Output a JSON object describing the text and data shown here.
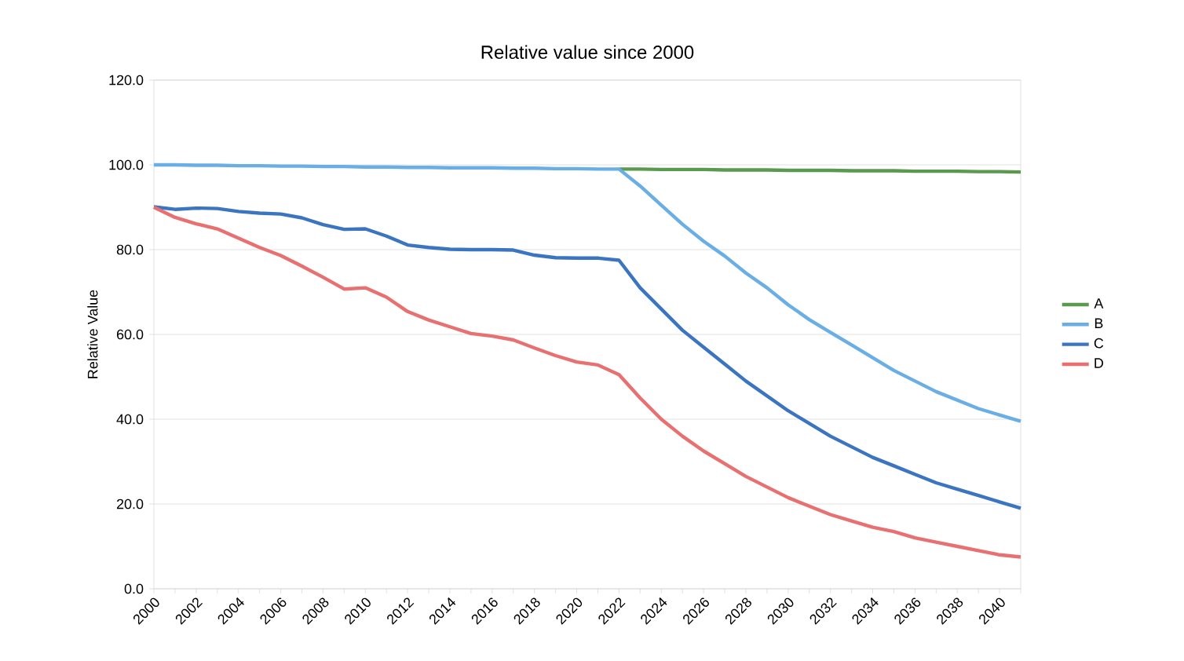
{
  "chart_data": {
    "type": "line",
    "title": "Relative value since 2000",
    "ylabel": "Relative Value",
    "categories": [
      "2000",
      null,
      "2002",
      null,
      "2004",
      null,
      "2006",
      null,
      "2008",
      null,
      "2010",
      null,
      "2012",
      null,
      "2014",
      null,
      "2016",
      null,
      "2018",
      null,
      "2020",
      null,
      "2022",
      null,
      "2024",
      null,
      "2026",
      null,
      "2028",
      null,
      "2030",
      null,
      "2032",
      null,
      "2034",
      null,
      "2036",
      null,
      "2038",
      null,
      "2040",
      null
    ],
    "series": [
      {
        "name": "A",
        "color": "#5a9a4f",
        "values": [
          null,
          null,
          null,
          null,
          null,
          null,
          null,
          null,
          null,
          null,
          null,
          null,
          null,
          null,
          null,
          null,
          null,
          null,
          null,
          null,
          null,
          null,
          99.0,
          99.0,
          98.9,
          98.9,
          98.9,
          98.8,
          98.8,
          98.8,
          98.7,
          98.7,
          98.7,
          98.6,
          98.6,
          98.6,
          98.5,
          98.5,
          98.5,
          98.4,
          98.4,
          98.3
        ]
      },
      {
        "name": "B",
        "color": "#6aaee6",
        "values": [
          100.0,
          100.0,
          99.9,
          99.9,
          99.8,
          99.8,
          99.7,
          99.7,
          99.6,
          99.6,
          99.5,
          99.5,
          99.4,
          99.4,
          99.3,
          99.3,
          99.3,
          99.2,
          99.2,
          99.1,
          99.1,
          99.0,
          99.0,
          95.0,
          90.5,
          86.0,
          82.0,
          78.5,
          74.5,
          71.0,
          67.0,
          63.5,
          60.5,
          57.5,
          54.5,
          51.5,
          49.0,
          46.5,
          44.5,
          42.5,
          41.0,
          39.5
        ]
      },
      {
        "name": "C",
        "color": "#3b74c0",
        "values": [
          90.1,
          89.5,
          89.8,
          89.7,
          89.0,
          88.6,
          88.4,
          87.5,
          85.9,
          84.8,
          84.9,
          83.2,
          81.1,
          80.5,
          80.1,
          80.0,
          80.0,
          79.9,
          78.7,
          78.1,
          78.0,
          78.0,
          77.5,
          71.0,
          66.0,
          61.0,
          57.0,
          53.0,
          49.0,
          45.5,
          42.0,
          39.0,
          36.0,
          33.5,
          31.0,
          29.0,
          27.0,
          25.0,
          23.5,
          22.0,
          20.5,
          19.0
        ]
      },
      {
        "name": "D",
        "color": "#e87070",
        "values": [
          90.0,
          87.6,
          86.1,
          84.9,
          82.7,
          80.5,
          78.6,
          76.1,
          73.5,
          70.7,
          71.0,
          68.8,
          65.4,
          63.4,
          61.8,
          60.2,
          59.6,
          58.7,
          56.8,
          55.0,
          53.5,
          52.8,
          50.5,
          45.0,
          40.0,
          36.0,
          32.5,
          29.5,
          26.5,
          24.0,
          21.5,
          19.5,
          17.5,
          16.0,
          14.5,
          13.5,
          12.0,
          11.0,
          10.0,
          9.0,
          8.0,
          7.5
        ]
      }
    ],
    "ylim": [
      0,
      120
    ],
    "yticks": [
      {
        "value": 0,
        "label": "0.0"
      },
      {
        "value": 20,
        "label": "20.0"
      },
      {
        "value": 40,
        "label": "40.0"
      },
      {
        "value": 60,
        "label": "60.0"
      },
      {
        "value": 80,
        "label": "80.0"
      },
      {
        "value": 100,
        "label": "100.0"
      },
      {
        "value": 120,
        "label": "120.0"
      }
    ],
    "grid": "y",
    "legend": "right",
    "marker": "none",
    "line_style": "solid"
  }
}
